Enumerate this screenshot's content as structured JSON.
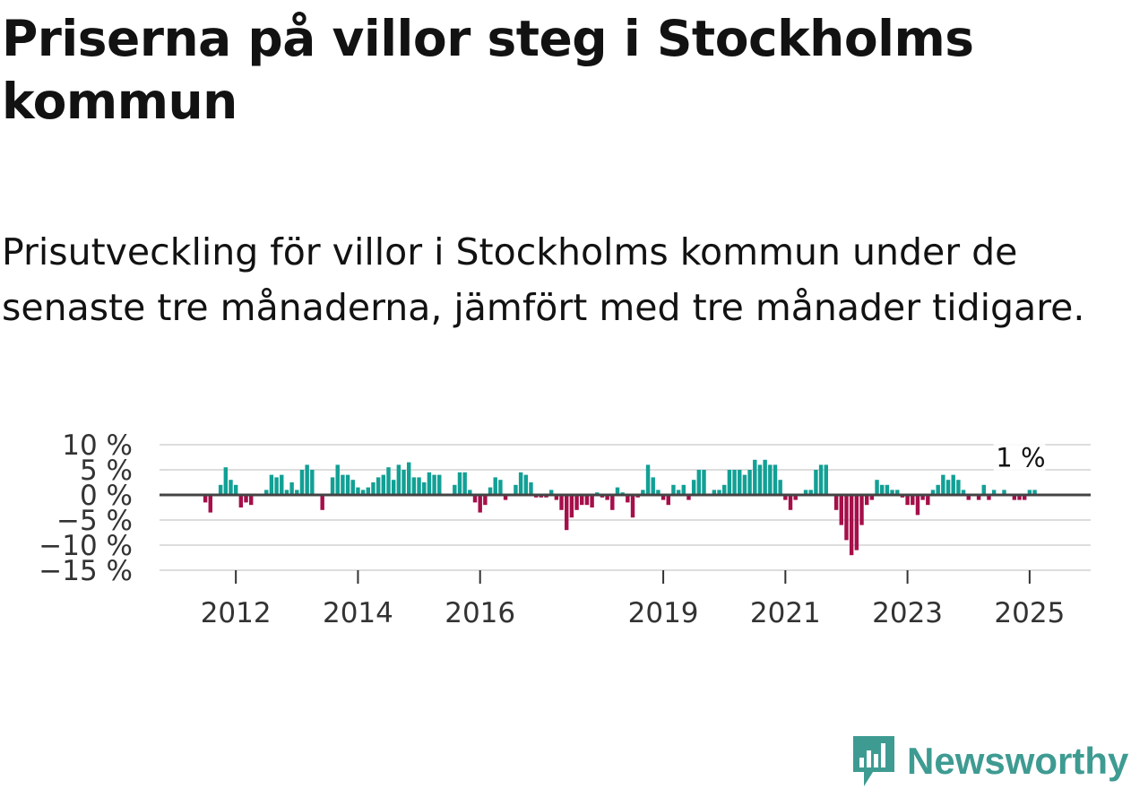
{
  "title": "Priserna på villor steg i Stockholms kommun",
  "subtitle": "Prisutveckling för villor i Stockholms kommun under de senaste tre månaderna, jämfört med tre månader tidigare.",
  "brand": {
    "name": "Newsworthy",
    "color": "#3e9b92",
    "icon": "newsworthy-chart-bubble-icon"
  },
  "colors": {
    "positive": "#12a095",
    "negative": "#a50f4a",
    "zero_line": "#444444",
    "grid": "#dddddd"
  },
  "chart_data": {
    "type": "bar",
    "title": "",
    "xlabel": "",
    "ylabel": "",
    "ylim": [
      -15,
      10
    ],
    "y_ticks": [
      10,
      5,
      0,
      -5,
      -10,
      -15
    ],
    "y_tick_labels": [
      "10 %",
      "5 %",
      "0 %",
      "−5 %",
      "−10 %",
      "−15 %"
    ],
    "x_ticks": [
      2012,
      2014,
      2016,
      2019,
      2021,
      2023,
      2025
    ],
    "x_tick_labels": [
      "2012",
      "2014",
      "2016",
      "2019",
      "2021",
      "2023",
      "2025"
    ],
    "x_range": [
      2010.75,
      2026.0
    ],
    "series_start": 2011.5,
    "step_months": 1,
    "values": [
      -1.5,
      -3.5,
      0,
      2,
      5.5,
      3,
      2,
      -2.5,
      -1.5,
      -2,
      0,
      0,
      1,
      4,
      3.5,
      4,
      1,
      2.5,
      1,
      5,
      6,
      5,
      0,
      -3,
      0,
      3.5,
      6,
      4,
      4,
      3,
      1.5,
      1,
      1.5,
      2.5,
      3.5,
      4,
      5.5,
      3,
      6,
      5,
      6.5,
      3.5,
      3.5,
      2.5,
      4.5,
      4,
      4,
      0,
      0,
      2,
      4.5,
      4.5,
      1,
      -1.5,
      -3.5,
      -2,
      1.5,
      3.5,
      3,
      -1,
      0,
      2,
      4.5,
      4,
      2.5,
      -0.5,
      -0.5,
      -0.5,
      1,
      -1,
      -3,
      -7,
      -4.5,
      -3,
      -2,
      -2,
      -2.5,
      0.5,
      -0.5,
      -1,
      -3,
      1.5,
      0.5,
      -1.5,
      -4.5,
      -0.5,
      1,
      6,
      3.5,
      1,
      -1,
      -2,
      2,
      1,
      2,
      -1,
      3,
      5,
      5,
      0,
      1,
      1,
      2,
      5,
      5,
      5,
      4,
      5,
      7,
      6,
      7,
      6,
      6,
      3,
      -1,
      -3,
      -1,
      0,
      1,
      1,
      5,
      6,
      6,
      0,
      -3,
      -6,
      -9,
      -12,
      -11,
      -6,
      -2,
      -1,
      3,
      2,
      2,
      1,
      1,
      -0.5,
      -2,
      -2,
      -4,
      -1,
      -2,
      1,
      2,
      4,
      3,
      4,
      3,
      1,
      -1,
      0,
      -1,
      2,
      -1,
      1,
      0,
      1,
      0,
      -1,
      -1,
      -1,
      1,
      1
    ],
    "annotation": {
      "label": "1 %",
      "value": 1
    }
  }
}
